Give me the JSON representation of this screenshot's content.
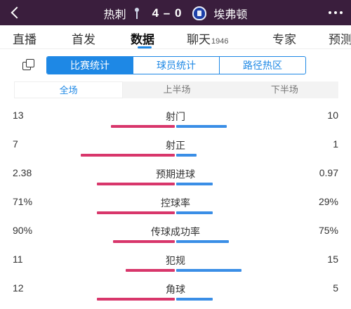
{
  "header": {
    "home_team": "热刺",
    "score": "4 – 0",
    "away_team": "埃弗顿",
    "back_icon": "chevron-left-icon",
    "menu_icon": "more-dots-icon"
  },
  "tabs": [
    {
      "label": "直播",
      "count": ""
    },
    {
      "label": "首发",
      "count": ""
    },
    {
      "label": "数据",
      "count": "",
      "active": true
    },
    {
      "label": "聊天",
      "count": "1946"
    },
    {
      "label": "专家",
      "count": ""
    },
    {
      "label": "预测",
      "count": ""
    }
  ],
  "segment": {
    "items": [
      "比赛统计",
      "球员统计",
      "路径热区"
    ],
    "active_index": 0
  },
  "period": {
    "items": [
      "全场",
      "上半场",
      "下半场"
    ],
    "active_index": 0
  },
  "colors": {
    "header_bg": "#3a1e3d",
    "accent": "#1e88e5",
    "home_bar": "#d8366b",
    "away_bar": "#3a8ee6"
  },
  "stats": [
    {
      "name": "射门",
      "home": "13",
      "away": "10",
      "home_frac": 0.57,
      "away_frac": 0.43
    },
    {
      "name": "射正",
      "home": "7",
      "away": "1",
      "home_frac": 0.875,
      "away_frac": 0.125
    },
    {
      "name": "预期进球",
      "home": "2.38",
      "away": "0.97",
      "home_frac": 0.71,
      "away_frac": 0.29
    },
    {
      "name": "控球率",
      "home": "71%",
      "away": "29%",
      "home_frac": 0.71,
      "away_frac": 0.29
    },
    {
      "name": "传球成功率",
      "home": "90%",
      "away": "75%",
      "home_frac": 0.545,
      "away_frac": 0.455
    },
    {
      "name": "犯规",
      "home": "11",
      "away": "15",
      "home_frac": 0.42,
      "away_frac": 0.58
    },
    {
      "name": "角球",
      "home": "12",
      "away": "5",
      "home_frac": 0.71,
      "away_frac": 0.29
    }
  ]
}
